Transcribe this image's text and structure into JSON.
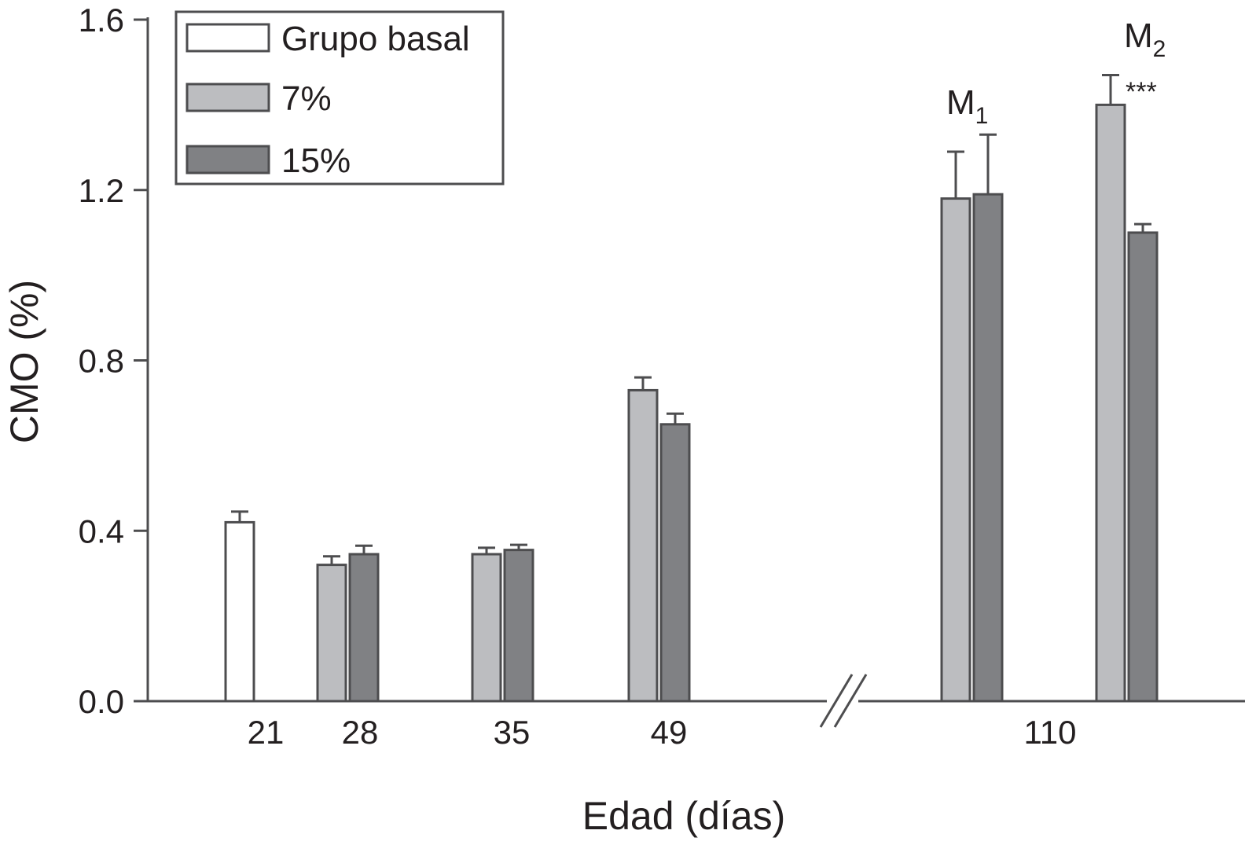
{
  "chart_data": {
    "type": "bar",
    "xlabel": "Edad (días)",
    "ylabel": "CMO (%)",
    "ylim": [
      0,
      1.6
    ],
    "yticks": [
      "0.0",
      "0.4",
      "0.8",
      "1.2",
      "1.6"
    ],
    "x_axis_break": true,
    "legend_position": "top-left",
    "series": [
      {
        "name": "Grupo basal",
        "color": "#ffffff",
        "edge": "#4d4d4f"
      },
      {
        "name": "7%",
        "color": "#bcbdc0",
        "edge": "#4d4d4f"
      },
      {
        "name": "15%",
        "color": "#808184",
        "edge": "#4d4d4f"
      }
    ],
    "tick_labels": [
      "21",
      "28",
      "35",
      "49",
      "110"
    ],
    "bars": [
      {
        "age": "21",
        "series": "Grupo basal",
        "value": 0.42,
        "error": 0.025
      },
      {
        "age": "28",
        "series": "7%",
        "value": 0.32,
        "error": 0.02
      },
      {
        "age": "28",
        "series": "15%",
        "value": 0.345,
        "error": 0.02
      },
      {
        "age": "35",
        "series": "7%",
        "value": 0.345,
        "error": 0.015
      },
      {
        "age": "35",
        "series": "15%",
        "value": 0.355,
        "error": 0.012
      },
      {
        "age": "49",
        "series": "7%",
        "value": 0.73,
        "error": 0.03
      },
      {
        "age": "49",
        "series": "15%",
        "value": 0.65,
        "error": 0.025
      },
      {
        "age": "110",
        "group": "M1",
        "series": "7%",
        "value": 1.18,
        "error": 0.11
      },
      {
        "age": "110",
        "group": "M1",
        "series": "15%",
        "value": 1.19,
        "error": 0.14
      },
      {
        "age": "110",
        "group": "M2",
        "series": "7%",
        "value": 1.4,
        "error": 0.07
      },
      {
        "age": "110",
        "group": "M2",
        "series": "15%",
        "value": 1.1,
        "error": 0.02
      }
    ],
    "annotations": [
      {
        "text": "M",
        "subscript": "1"
      },
      {
        "text": "M",
        "subscript": "2"
      },
      {
        "text": "***"
      }
    ]
  }
}
